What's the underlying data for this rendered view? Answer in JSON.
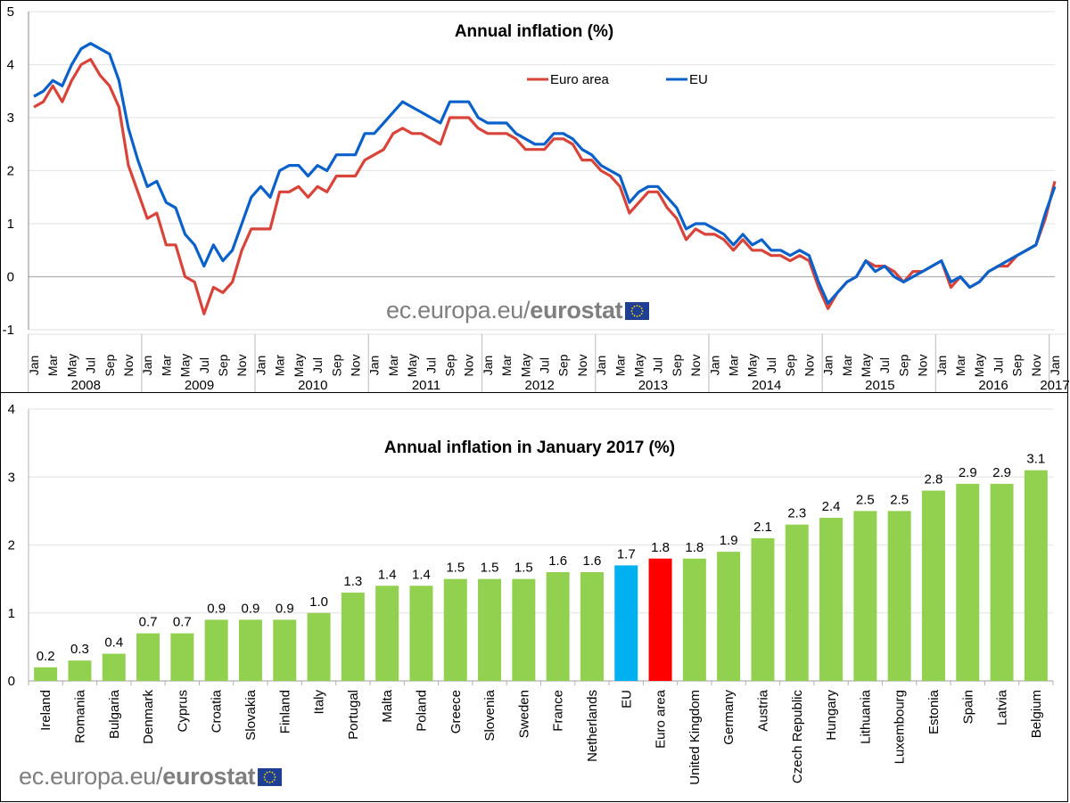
{
  "branding": {
    "domain_text": "ec.europa.eu/",
    "brand_text": "eurostat",
    "flag_icon": "eu-flag-icon"
  },
  "chart_data": [
    {
      "type": "line",
      "title": "Annual inflation (%)",
      "xlabel": "",
      "ylabel": "",
      "ylim": [
        -1,
        5
      ],
      "yticks": [
        "5",
        "4",
        "3",
        "2",
        "1",
        "0",
        "-1"
      ],
      "ytick_values": [
        5,
        4,
        3,
        2,
        1,
        0,
        -1
      ],
      "grid": true,
      "legend": "top-center",
      "month_tick_labels": [
        "Jan",
        "Mar",
        "May",
        "Jul",
        "Sep",
        "Nov"
      ],
      "years": [
        "2008",
        "2009",
        "2010",
        "2011",
        "2012",
        "2013",
        "2014",
        "2015",
        "2016",
        "2017"
      ],
      "x_start": "Jan 2008",
      "x_end": "Jan 2017",
      "series": [
        {
          "name": "Euro area",
          "color": "#d9443a",
          "values": [
            3.2,
            3.3,
            3.6,
            3.3,
            3.7,
            4.0,
            4.1,
            3.8,
            3.6,
            3.2,
            2.1,
            1.6,
            1.1,
            1.2,
            0.6,
            0.6,
            0.0,
            -0.1,
            -0.7,
            -0.2,
            -0.3,
            -0.1,
            0.5,
            0.9,
            0.9,
            0.9,
            1.6,
            1.6,
            1.7,
            1.5,
            1.7,
            1.6,
            1.9,
            1.9,
            1.9,
            2.2,
            2.3,
            2.4,
            2.7,
            2.8,
            2.7,
            2.7,
            2.6,
            2.5,
            3.0,
            3.0,
            3.0,
            2.8,
            2.7,
            2.7,
            2.7,
            2.6,
            2.4,
            2.4,
            2.4,
            2.6,
            2.6,
            2.5,
            2.2,
            2.2,
            2.0,
            1.9,
            1.7,
            1.2,
            1.4,
            1.6,
            1.6,
            1.3,
            1.1,
            0.7,
            0.9,
            0.8,
            0.8,
            0.7,
            0.5,
            0.7,
            0.5,
            0.5,
            0.4,
            0.4,
            0.3,
            0.4,
            0.3,
            -0.2,
            -0.6,
            -0.3,
            -0.1,
            0.0,
            0.3,
            0.2,
            0.2,
            0.1,
            -0.1,
            0.1,
            0.1,
            0.2,
            0.3,
            -0.2,
            0.0,
            -0.2,
            -0.1,
            0.1,
            0.2,
            0.2,
            0.4,
            0.5,
            0.6,
            1.1,
            1.8
          ]
        },
        {
          "name": "EU",
          "color": "#0a61c9",
          "values": [
            3.4,
            3.5,
            3.7,
            3.6,
            4.0,
            4.3,
            4.4,
            4.3,
            4.2,
            3.7,
            2.8,
            2.2,
            1.7,
            1.8,
            1.4,
            1.3,
            0.8,
            0.6,
            0.2,
            0.6,
            0.3,
            0.5,
            1.0,
            1.5,
            1.7,
            1.5,
            2.0,
            2.1,
            2.1,
            1.9,
            2.1,
            2.0,
            2.3,
            2.3,
            2.3,
            2.7,
            2.7,
            2.9,
            3.1,
            3.3,
            3.2,
            3.1,
            3.0,
            2.9,
            3.3,
            3.3,
            3.3,
            3.0,
            2.9,
            2.9,
            2.9,
            2.7,
            2.6,
            2.5,
            2.5,
            2.7,
            2.7,
            2.6,
            2.4,
            2.3,
            2.1,
            2.0,
            1.9,
            1.4,
            1.6,
            1.7,
            1.7,
            1.5,
            1.3,
            0.9,
            1.0,
            1.0,
            0.9,
            0.8,
            0.6,
            0.8,
            0.6,
            0.7,
            0.5,
            0.5,
            0.4,
            0.5,
            0.4,
            -0.1,
            -0.5,
            -0.3,
            -0.1,
            0.0,
            0.3,
            0.1,
            0.2,
            0.0,
            -0.1,
            0.0,
            0.1,
            0.2,
            0.3,
            -0.1,
            0.0,
            -0.2,
            -0.1,
            0.1,
            0.2,
            0.3,
            0.4,
            0.5,
            0.6,
            1.2,
            1.7
          ]
        }
      ]
    },
    {
      "type": "bar",
      "title": "Annual inflation in January 2017 (%)",
      "xlabel": "",
      "ylabel": "",
      "ylim": [
        0,
        4
      ],
      "yticks": [
        "4",
        "3",
        "2",
        "1",
        "0"
      ],
      "ytick_values": [
        4,
        3,
        2,
        1,
        0
      ],
      "grid": true,
      "categories": [
        "Ireland",
        "Romania",
        "Bulgaria",
        "Denmark",
        "Cyprus",
        "Croatia",
        "Slovakia",
        "Finland",
        "Italy",
        "Portugal",
        "Malta",
        "Poland",
        "Greece",
        "Slovenia",
        "Sweden",
        "France",
        "Netherlands",
        "EU",
        "Euro area",
        "United Kingdom",
        "Germany",
        "Austria",
        "Czech Republic",
        "Hungary",
        "Lithuania",
        "Luxembourg",
        "Estonia",
        "Spain",
        "Latvia",
        "Belgium"
      ],
      "values": [
        0.2,
        0.3,
        0.4,
        0.7,
        0.7,
        0.9,
        0.9,
        0.9,
        1.0,
        1.3,
        1.4,
        1.4,
        1.5,
        1.5,
        1.5,
        1.6,
        1.6,
        1.7,
        1.8,
        1.8,
        1.9,
        2.1,
        2.3,
        2.4,
        2.5,
        2.5,
        2.8,
        2.9,
        2.9,
        3.1
      ],
      "value_labels": [
        "0.2",
        "0.3",
        "0.4",
        "0.7",
        "0.7",
        "0.9",
        "0.9",
        "0.9",
        "1.0",
        "1.3",
        "1.4",
        "1.4",
        "1.5",
        "1.5",
        "1.5",
        "1.6",
        "1.6",
        "1.7",
        "1.8",
        "1.8",
        "1.9",
        "2.1",
        "2.3",
        "2.4",
        "2.5",
        "2.5",
        "2.8",
        "2.9",
        "2.9",
        "3.1"
      ],
      "colors": {
        "default": "#92d050",
        "EU": "#00b0f0",
        "Euro area": "#ff0000"
      }
    }
  ]
}
